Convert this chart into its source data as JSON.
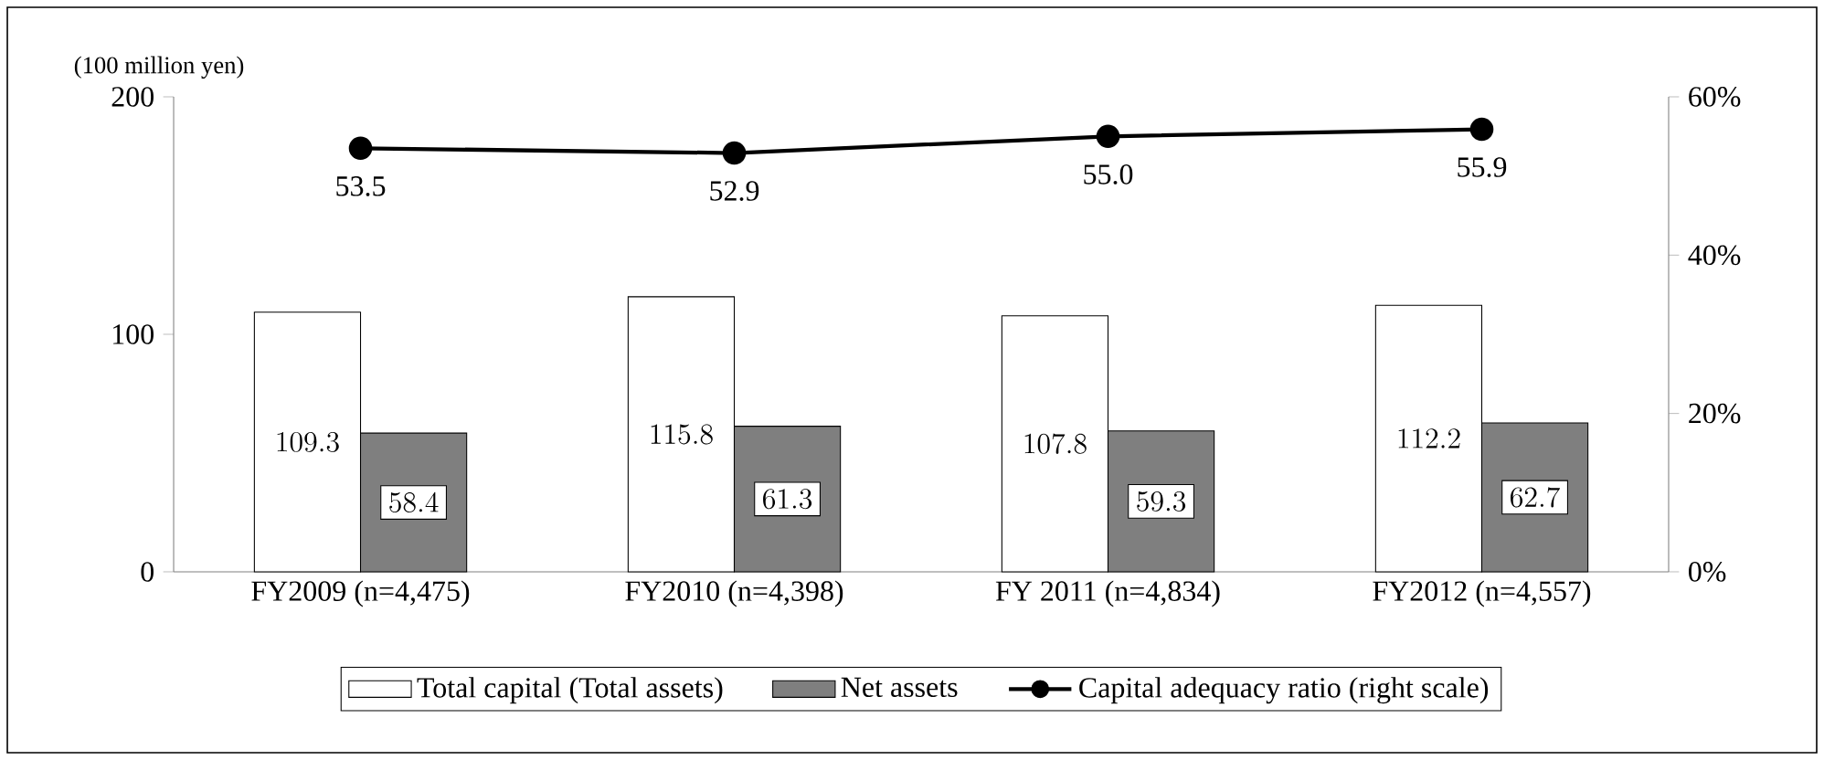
{
  "chart_data": {
    "type": "bar",
    "ylabel": "(100 million yen)",
    "categories": [
      "FY2009 (n=4,475)",
      "FY2010 (n=4,398)",
      "FY 2011 (n=4,834)",
      "FY2012 (n=4,557)"
    ],
    "series": [
      {
        "name": "Total capital (Total assets)",
        "color": "#ffffff",
        "values": [
          109.3,
          115.8,
          107.8,
          112.2
        ]
      },
      {
        "name": "Net assets",
        "color": "#7f7f7f",
        "values": [
          58.4,
          61.3,
          59.3,
          62.7
        ]
      },
      {
        "name": "Capital adequacy ratio (right scale)",
        "type": "line",
        "axis": "y2",
        "color": "#000000",
        "marker": "circle",
        "values": [
          53.5,
          52.9,
          55.0,
          55.9
        ],
        "value_labels": [
          "53.5",
          "52.9",
          "55.0",
          "55.9"
        ]
      }
    ],
    "ylim": [
      0,
      200
    ],
    "yticks": [
      0,
      100,
      200
    ],
    "y2lim": [
      0,
      60
    ],
    "y2ticks": [
      {
        "value": 0,
        "label": "0%"
      },
      {
        "value": 20,
        "label": "20%"
      },
      {
        "value": 40,
        "label": "40%"
      },
      {
        "value": 60,
        "label": "60%"
      }
    ],
    "data_labels": true,
    "grid": false,
    "legend": "bottom"
  }
}
